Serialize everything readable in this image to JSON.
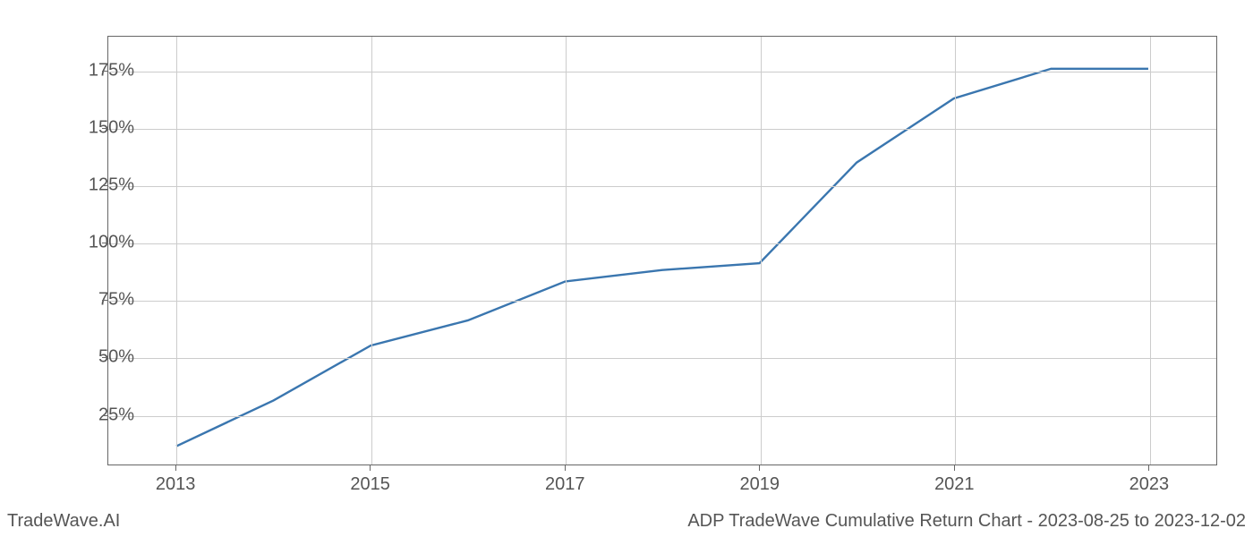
{
  "chart": {
    "type": "line",
    "line_color": "#3a76af",
    "line_width": 2.4,
    "background_color": "#ffffff",
    "grid_color": "#cccccc",
    "axis_color": "#666666",
    "tick_font_size": 20,
    "tick_color": "#555555",
    "xlim": [
      2012.3,
      2023.7
    ],
    "ylim": [
      3,
      190
    ],
    "xticks": [
      2013,
      2015,
      2017,
      2019,
      2021,
      2023
    ],
    "xtick_labels": [
      "2013",
      "2015",
      "2017",
      "2019",
      "2021",
      "2023"
    ],
    "yticks": [
      25,
      50,
      75,
      100,
      125,
      150,
      175
    ],
    "ytick_labels": [
      "25%",
      "50%",
      "75%",
      "100%",
      "125%",
      "150%",
      "175%"
    ],
    "data": {
      "x": [
        2013,
        2014,
        2015,
        2016,
        2017,
        2018,
        2019,
        2020,
        2021,
        2022,
        2023
      ],
      "y": [
        11,
        31,
        55,
        66,
        83,
        88,
        91,
        135,
        163,
        176,
        176
      ]
    }
  },
  "footer": {
    "left": "TradeWave.AI",
    "right": "ADP TradeWave Cumulative Return Chart - 2023-08-25 to 2023-12-02"
  }
}
